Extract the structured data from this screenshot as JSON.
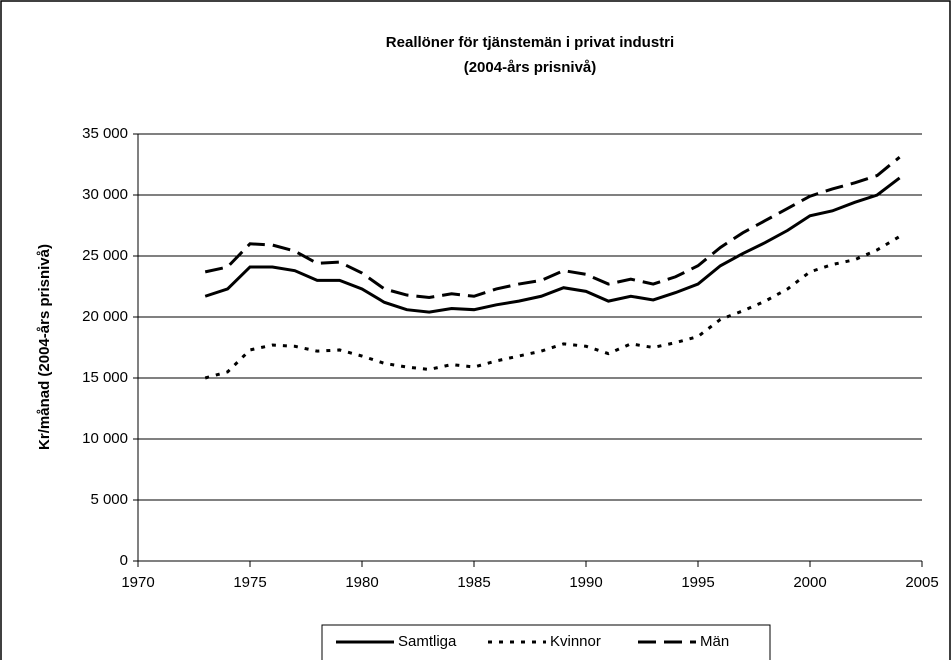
{
  "chart_data": {
    "type": "line",
    "title": "Reallöner för tjänstemän i privat industri",
    "subtitle": "(2004-års prisnivå)",
    "y_label": "Kr/månad (2004-års prisnivå)",
    "x": [
      1973,
      1974,
      1975,
      1976,
      1977,
      1978,
      1979,
      1980,
      1981,
      1982,
      1983,
      1984,
      1985,
      1986,
      1987,
      1988,
      1989,
      1990,
      1991,
      1992,
      1993,
      1994,
      1995,
      1996,
      1997,
      1998,
      1999,
      2000,
      2001,
      2002,
      2003,
      2004
    ],
    "series": [
      {
        "name": "Samtliga",
        "color": "#000000",
        "dash": "solid",
        "values": [
          21700,
          22300,
          24100,
          24100,
          23800,
          23000,
          23000,
          22300,
          21200,
          20600,
          20400,
          20700,
          20600,
          21000,
          21300,
          21700,
          22400,
          22100,
          21300,
          21700,
          21400,
          22000,
          22700,
          24200,
          25200,
          26100,
          27100,
          28300,
          28700,
          29400,
          30000,
          31400
        ]
      },
      {
        "name": "Kvinnor",
        "color": "#000000",
        "dash": "dot",
        "values": [
          15000,
          15500,
          17300,
          17700,
          17600,
          17200,
          17300,
          16800,
          16200,
          15900,
          15700,
          16100,
          15900,
          16400,
          16800,
          17200,
          17800,
          17600,
          17000,
          17800,
          17500,
          17900,
          18400,
          19800,
          20500,
          21300,
          22300,
          23700,
          24300,
          24700,
          25500,
          26600
        ]
      },
      {
        "name": "Män",
        "color": "#000000",
        "dash": "dash",
        "values": [
          23700,
          24100,
          26000,
          25900,
          25400,
          24400,
          24500,
          23600,
          22300,
          21800,
          21600,
          21900,
          21700,
          22300,
          22700,
          23000,
          23800,
          23500,
          22700,
          23100,
          22700,
          23300,
          24200,
          25700,
          26900,
          27900,
          28900,
          29900,
          30500,
          31000,
          31600,
          33100
        ]
      }
    ],
    "xlim": [
      1970,
      2005
    ],
    "xticks": [
      1970,
      1975,
      1980,
      1985,
      1990,
      1995,
      2000,
      2005
    ],
    "ylim": [
      0,
      35000
    ],
    "yticks": [
      0,
      {
        "value": 5000,
        "label": "5 000"
      },
      {
        "value": 10000,
        "label": "10 000"
      },
      {
        "value": 15000,
        "label": "15 000"
      },
      {
        "value": 20000,
        "label": "20 000"
      },
      {
        "value": 25000,
        "label": "25 000"
      },
      {
        "value": 30000,
        "label": "30 000"
      },
      {
        "value": 35000,
        "label": "35 000"
      }
    ],
    "grid": true,
    "legend": "bottom"
  }
}
